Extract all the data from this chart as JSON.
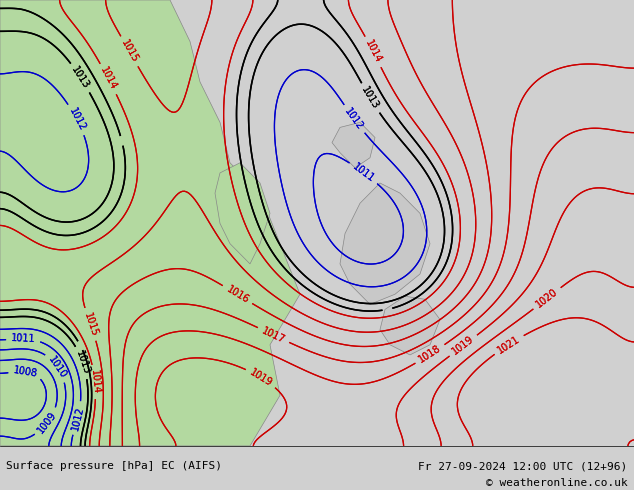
{
  "title_left": "Surface pressure [hPa] EC (AIFS)",
  "title_right": "Fr 27-09-2024 12:00 UTC (12+96)",
  "copyright": "© weatheronline.co.uk",
  "bg_color": "#d0d0d0",
  "land_color_green": "#b3d9a0",
  "land_color_gray": "#c8c8c8",
  "sea_color": "#e8e8e8",
  "contour_color_red": "#cc0000",
  "contour_color_blue": "#0000cc",
  "contour_color_black": "#000000",
  "contour_color_gray": "#888888",
  "label_fontsize": 7,
  "footer_fontsize": 8,
  "pressure_min": 1004,
  "pressure_max": 1022,
  "figsize": [
    6.34,
    4.9
  ],
  "dpi": 100
}
